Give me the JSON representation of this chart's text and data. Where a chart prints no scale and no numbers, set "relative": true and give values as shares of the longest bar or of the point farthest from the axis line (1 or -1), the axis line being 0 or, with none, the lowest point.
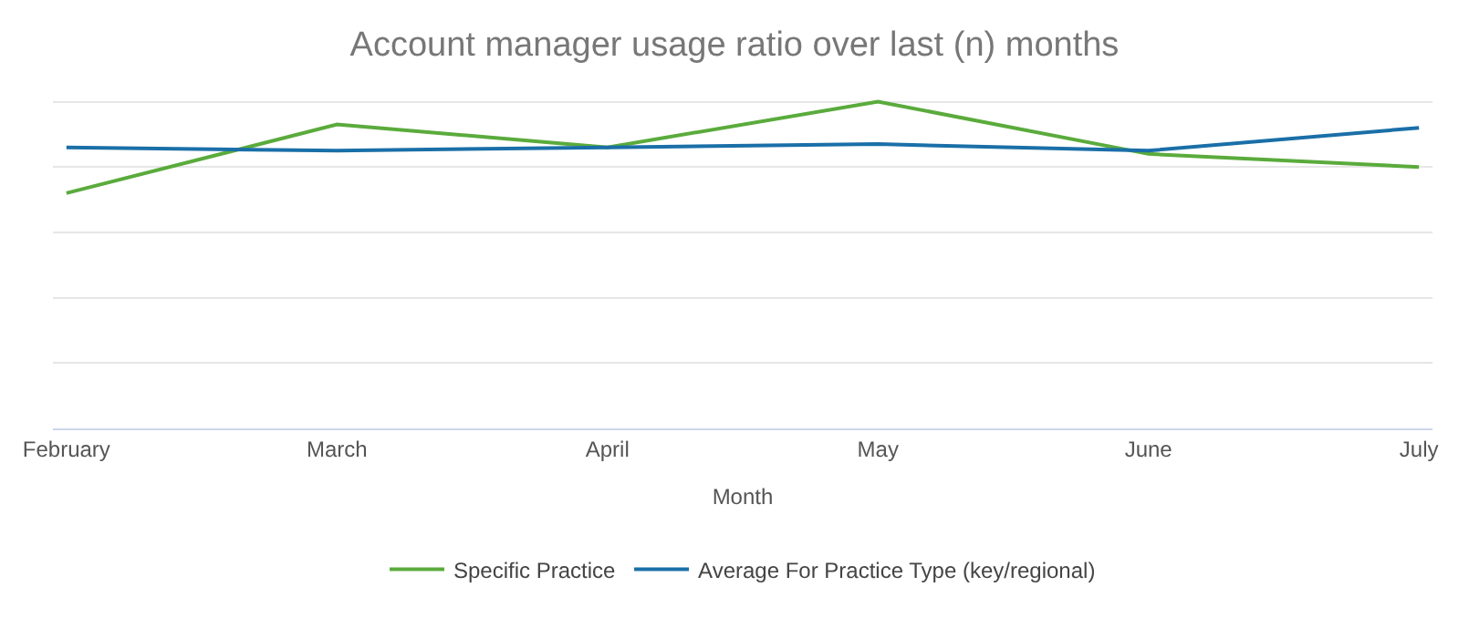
{
  "chart_data": {
    "type": "line",
    "title": "Account manager usage ratio over last (n) months",
    "xlabel": "Month",
    "relative": true,
    "grid": "y",
    "legend": "bottom",
    "marker": "none",
    "line_style": "solid",
    "categories": [
      "February",
      "March",
      "April",
      "May",
      "June",
      "July"
    ],
    "series": [
      {
        "name": "Specific Practice",
        "color": "#5aab3c",
        "values": [
          0.72,
          0.93,
          0.86,
          1,
          0.84,
          0.8
        ]
      },
      {
        "name": "Average For Practice Type (key/regional)",
        "color": "#1a6fa8",
        "values": [
          0.86,
          0.85,
          0.86,
          0.87,
          0.85,
          0.92
        ]
      }
    ]
  }
}
